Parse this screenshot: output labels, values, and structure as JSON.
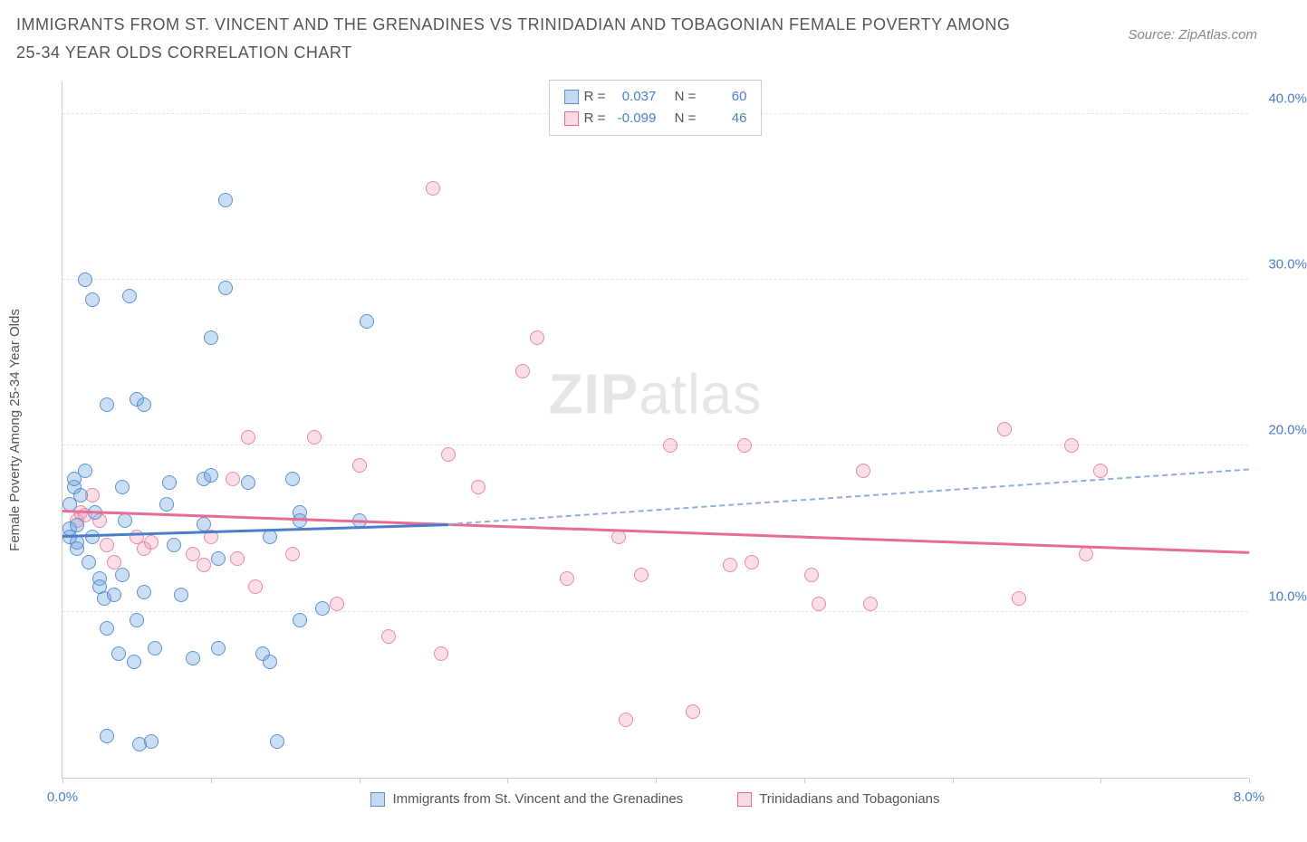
{
  "title": "IMMIGRANTS FROM ST. VINCENT AND THE GRENADINES VS TRINIDADIAN AND TOBAGONIAN FEMALE POVERTY AMONG 25-34 YEAR OLDS CORRELATION CHART",
  "source": "Source: ZipAtlas.com",
  "ylabel": "Female Poverty Among 25-34 Year Olds",
  "watermark_bold": "ZIP",
  "watermark_light": "atlas",
  "xlim": [
    0,
    8
  ],
  "ylim": [
    0,
    42
  ],
  "x_ticks": [
    0,
    1,
    2,
    3,
    4,
    5,
    6,
    7,
    8
  ],
  "x_tick_labels": {
    "0": "0.0%",
    "8": "8.0%"
  },
  "y_gridlines": [
    10,
    20,
    30,
    40
  ],
  "y_tick_labels": {
    "10": "10.0%",
    "20": "20.0%",
    "30": "30.0%",
    "40": "40.0%"
  },
  "legend_top": [
    {
      "swatch": "blue",
      "r_label": "R =",
      "r_val": "0.037",
      "n_label": "N =",
      "n_val": "60"
    },
    {
      "swatch": "pink",
      "r_label": "R =",
      "r_val": "-0.099",
      "n_label": "N =",
      "n_val": "46"
    }
  ],
  "legend_bottom": [
    {
      "swatch": "blue",
      "label": "Immigrants from St. Vincent and the Grenadines"
    },
    {
      "swatch": "pink",
      "label": "Trinidadians and Tobagonians"
    }
  ],
  "series_blue": {
    "points": [
      [
        0.05,
        14.5
      ],
      [
        0.05,
        15
      ],
      [
        0.05,
        16.5
      ],
      [
        0.08,
        17.5
      ],
      [
        0.08,
        18
      ],
      [
        0.1,
        13.8
      ],
      [
        0.1,
        14.2
      ],
      [
        0.1,
        15.2
      ],
      [
        0.12,
        17
      ],
      [
        0.15,
        18.5
      ],
      [
        0.15,
        30
      ],
      [
        0.18,
        13
      ],
      [
        0.2,
        28.8
      ],
      [
        0.2,
        14.5
      ],
      [
        0.22,
        16
      ],
      [
        0.25,
        12
      ],
      [
        0.25,
        11.5
      ],
      [
        0.28,
        10.8
      ],
      [
        0.3,
        22.5
      ],
      [
        0.3,
        9
      ],
      [
        0.3,
        2.5
      ],
      [
        0.35,
        11
      ],
      [
        0.38,
        7.5
      ],
      [
        0.4,
        12.2
      ],
      [
        0.4,
        17.5
      ],
      [
        0.42,
        15.5
      ],
      [
        0.45,
        29
      ],
      [
        0.48,
        7
      ],
      [
        0.5,
        22.8
      ],
      [
        0.5,
        9.5
      ],
      [
        0.52,
        2
      ],
      [
        0.55,
        22.5
      ],
      [
        0.55,
        11.2
      ],
      [
        0.6,
        2.2
      ],
      [
        0.62,
        7.8
      ],
      [
        0.7,
        16.5
      ],
      [
        0.72,
        17.8
      ],
      [
        0.75,
        14
      ],
      [
        0.8,
        11
      ],
      [
        0.88,
        7.2
      ],
      [
        0.95,
        18
      ],
      [
        0.95,
        15.3
      ],
      [
        1.0,
        18.2
      ],
      [
        1.0,
        26.5
      ],
      [
        1.05,
        7.8
      ],
      [
        1.05,
        13.2
      ],
      [
        1.1,
        29.5
      ],
      [
        1.1,
        34.8
      ],
      [
        1.25,
        17.8
      ],
      [
        1.35,
        7.5
      ],
      [
        1.4,
        14.5
      ],
      [
        1.4,
        7
      ],
      [
        1.45,
        2.2
      ],
      [
        1.55,
        18
      ],
      [
        1.6,
        16
      ],
      [
        1.6,
        9.5
      ],
      [
        1.6,
        15.5
      ],
      [
        1.75,
        10.2
      ],
      [
        2.0,
        15.5
      ],
      [
        2.05,
        27.5
      ]
    ],
    "trend_solid": {
      "x1": 0,
      "y1": 14.5,
      "x2": 2.6,
      "y2": 15.2
    },
    "trend_dash": {
      "x1": 2.6,
      "y1": 15.2,
      "x2": 8.0,
      "y2": 18.5
    }
  },
  "series_pink": {
    "points": [
      [
        0.1,
        15.5
      ],
      [
        0.12,
        16
      ],
      [
        0.15,
        15.8
      ],
      [
        0.2,
        17
      ],
      [
        0.25,
        15.5
      ],
      [
        0.3,
        14
      ],
      [
        0.35,
        13
      ],
      [
        0.5,
        14.5
      ],
      [
        0.55,
        13.8
      ],
      [
        0.6,
        14.2
      ],
      [
        0.88,
        13.5
      ],
      [
        0.95,
        12.8
      ],
      [
        1.0,
        14.5
      ],
      [
        1.15,
        18
      ],
      [
        1.18,
        13.2
      ],
      [
        1.25,
        20.5
      ],
      [
        1.3,
        11.5
      ],
      [
        1.55,
        13.5
      ],
      [
        1.7,
        20.5
      ],
      [
        1.85,
        10.5
      ],
      [
        2.0,
        18.8
      ],
      [
        2.2,
        8.5
      ],
      [
        2.5,
        35.5
      ],
      [
        2.55,
        7.5
      ],
      [
        2.6,
        19.5
      ],
      [
        2.8,
        17.5
      ],
      [
        3.1,
        24.5
      ],
      [
        3.2,
        26.5
      ],
      [
        3.4,
        12
      ],
      [
        3.75,
        14.5
      ],
      [
        3.8,
        3.5
      ],
      [
        3.9,
        12.2
      ],
      [
        4.1,
        20
      ],
      [
        4.25,
        4
      ],
      [
        4.5,
        12.8
      ],
      [
        4.6,
        20
      ],
      [
        4.65,
        13
      ],
      [
        5.05,
        12.2
      ],
      [
        5.1,
        10.5
      ],
      [
        5.4,
        18.5
      ],
      [
        5.45,
        10.5
      ],
      [
        6.35,
        21
      ],
      [
        6.45,
        10.8
      ],
      [
        6.8,
        20
      ],
      [
        6.9,
        13.5
      ],
      [
        7.0,
        18.5
      ]
    ],
    "trend_solid": {
      "x1": 0,
      "y1": 16,
      "x2": 8.0,
      "y2": 13.5
    }
  },
  "colors": {
    "blue_fill": "rgba(108,160,220,0.35)",
    "blue_stroke": "rgba(80,140,210,0.9)",
    "pink_fill": "rgba(240,150,175,0.3)",
    "pink_stroke": "rgba(235,120,155,0.85)",
    "axis_text": "#4a7ec9",
    "grid": "#e5e5e5"
  }
}
